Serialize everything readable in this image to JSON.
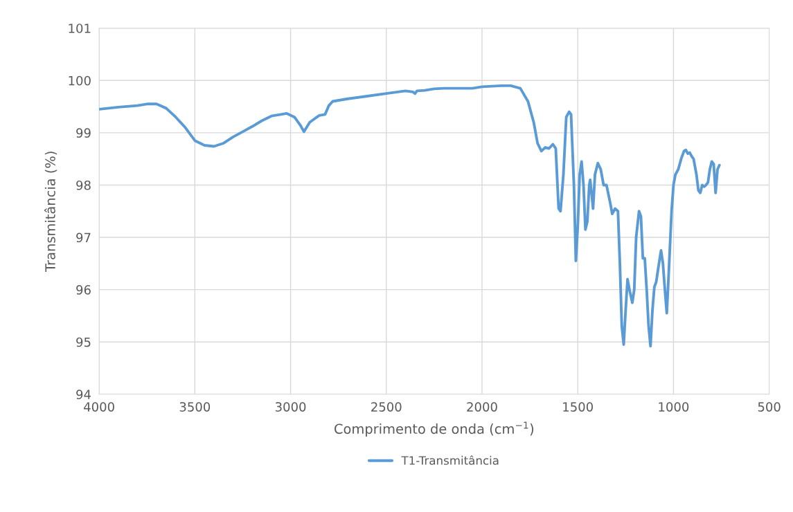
{
  "chart_data": {
    "type": "line",
    "xlabel": "Comprimento de onda (cm$^{−1}$)",
    "ylabel": "Transmitância (%)",
    "xlim": [
      4000,
      500
    ],
    "xticks": [
      4000,
      3500,
      3000,
      2500,
      2000,
      1500,
      1000,
      500
    ],
    "ylim": [
      94,
      101
    ],
    "yticks": [
      94,
      95,
      96,
      97,
      98,
      99,
      100,
      101
    ],
    "grid": true,
    "legend": "bottom",
    "line_style": "solid",
    "marker": "none",
    "series": [
      {
        "name": "T1-Transmitância",
        "color": "#5b9bd5",
        "x": [
          4000,
          3900,
          3800,
          3750,
          3700,
          3650,
          3600,
          3550,
          3500,
          3450,
          3400,
          3350,
          3300,
          3250,
          3200,
          3150,
          3100,
          3050,
          3020,
          2980,
          2950,
          2930,
          2900,
          2870,
          2850,
          2820,
          2800,
          2780,
          2700,
          2600,
          2500,
          2400,
          2360,
          2350,
          2340,
          2300,
          2250,
          2200,
          2100,
          2050,
          2000,
          1900,
          1850,
          1800,
          1760,
          1730,
          1710,
          1690,
          1670,
          1650,
          1630,
          1615,
          1600,
          1590,
          1575,
          1560,
          1545,
          1535,
          1520,
          1510,
          1500,
          1490,
          1480,
          1470,
          1460,
          1450,
          1440,
          1435,
          1420,
          1410,
          1395,
          1380,
          1365,
          1350,
          1330,
          1320,
          1305,
          1290,
          1280,
          1270,
          1260,
          1250,
          1240,
          1230,
          1215,
          1205,
          1195,
          1180,
          1170,
          1160,
          1150,
          1140,
          1130,
          1120,
          1110,
          1100,
          1090,
          1080,
          1065,
          1055,
          1045,
          1035,
          1025,
          1010,
          1000,
          990,
          975,
          960,
          945,
          935,
          925,
          915,
          905,
          895,
          880,
          870,
          860,
          850,
          840,
          830,
          820,
          810,
          800,
          790,
          780,
          770,
          760
        ],
        "values": [
          99.45,
          99.49,
          99.52,
          99.55,
          99.55,
          99.47,
          99.3,
          99.1,
          98.85,
          98.76,
          98.74,
          98.8,
          98.92,
          99.02,
          99.12,
          99.23,
          99.32,
          99.35,
          99.37,
          99.3,
          99.15,
          99.02,
          99.2,
          99.28,
          99.33,
          99.35,
          99.52,
          99.6,
          99.65,
          99.7,
          99.75,
          99.8,
          99.78,
          99.75,
          99.8,
          99.81,
          99.84,
          99.85,
          99.85,
          99.85,
          99.88,
          99.9,
          99.9,
          99.85,
          99.6,
          99.2,
          98.8,
          98.65,
          98.72,
          98.7,
          98.78,
          98.7,
          97.55,
          97.5,
          98.2,
          99.3,
          99.4,
          99.35,
          98.0,
          96.55,
          97.2,
          98.2,
          98.45,
          98.0,
          97.15,
          97.3,
          98.0,
          98.1,
          97.55,
          98.2,
          98.42,
          98.3,
          98.0,
          98.0,
          97.65,
          97.45,
          97.55,
          97.5,
          96.5,
          95.3,
          94.95,
          95.6,
          96.2,
          96.0,
          95.75,
          96.0,
          97.0,
          97.5,
          97.4,
          96.6,
          96.6,
          96.0,
          95.3,
          94.92,
          95.6,
          96.05,
          96.15,
          96.4,
          96.75,
          96.5,
          96.0,
          95.55,
          96.3,
          97.5,
          98.0,
          98.2,
          98.3,
          98.5,
          98.65,
          98.67,
          98.6,
          98.62,
          98.55,
          98.5,
          98.2,
          97.9,
          97.85,
          98.0,
          97.97,
          98.0,
          98.05,
          98.3,
          98.45,
          98.4,
          97.85,
          98.3,
          98.38
        ]
      }
    ]
  }
}
